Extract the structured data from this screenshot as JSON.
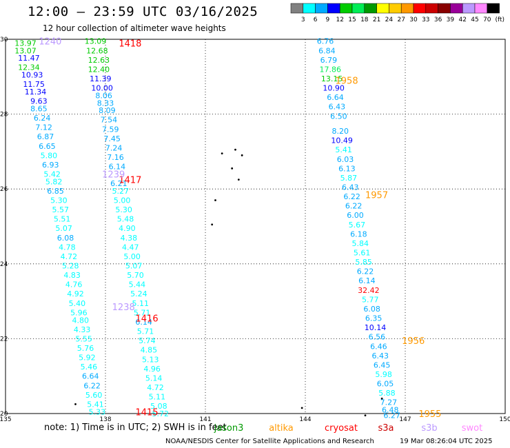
{
  "header": {
    "title": "12:00 – 23:59 UTC 03/16/2025",
    "subtitle": "12 hour collection of altimeter wave heights"
  },
  "colorbar": {
    "colors": [
      "#808080",
      "#00ffff",
      "#00aaff",
      "#0000ff",
      "#00cc00",
      "#00ee55",
      "#009900",
      "#ffff00",
      "#ffcc00",
      "#ff9900",
      "#ff0000",
      "#cc0000",
      "#880000",
      "#990099",
      "#bb99ff",
      "#ff88ff",
      "#000000"
    ],
    "labels": [
      "3",
      "6",
      "9",
      "12",
      "15",
      "18",
      "21",
      "24",
      "27",
      "30",
      "33",
      "36",
      "39",
      "42",
      "45",
      "70"
    ],
    "unit": "(ft)"
  },
  "chart_data": {
    "type": "scatter",
    "xlim": [
      135,
      150
    ],
    "ylim": [
      20,
      30
    ],
    "x_ticks": [
      "135",
      "138",
      "141",
      "144",
      "147",
      "150"
    ],
    "y_ticks": [
      "20",
      "22",
      "24",
      "26",
      "28",
      "30"
    ],
    "x_tick_values": [
      135,
      138,
      141,
      144,
      147,
      150
    ],
    "y_tick_values": [
      20,
      22,
      24,
      26,
      28,
      30
    ],
    "grid": true,
    "track_labels": [
      {
        "text": "1418",
        "lon": 138.4,
        "lat": 29.9,
        "color": "#ff0000"
      },
      {
        "text": "1240",
        "lon": 136.0,
        "lat": 29.95,
        "color": "#bb99ff"
      },
      {
        "text": "1417",
        "lon": 138.4,
        "lat": 26.25,
        "color": "#ff0000"
      },
      {
        "text": "1239",
        "lon": 137.9,
        "lat": 26.4,
        "color": "#bb99ff"
      },
      {
        "text": "1238",
        "lon": 138.2,
        "lat": 22.85,
        "color": "#bb99ff"
      },
      {
        "text": "1416",
        "lon": 138.9,
        "lat": 22.55,
        "color": "#ff0000"
      },
      {
        "text": "1415",
        "lon": 138.9,
        "lat": 20.05,
        "color": "#ff0000"
      },
      {
        "text": "1958",
        "lon": 144.9,
        "lat": 28.9,
        "color": "#ff9900"
      },
      {
        "text": "1957",
        "lon": 145.8,
        "lat": 25.85,
        "color": "#ff9900"
      },
      {
        "text": "1956",
        "lon": 146.9,
        "lat": 21.95,
        "color": "#ff9900"
      },
      {
        "text": "1955",
        "lon": 147.4,
        "lat": 20.0,
        "color": "#ff9900"
      }
    ],
    "series": [
      {
        "values": [
          [
            "13.97",
            135.6,
            29.9
          ],
          [
            "13.07",
            135.6,
            29.7
          ],
          [
            "11.47",
            135.7,
            29.5
          ],
          [
            "12.34",
            135.7,
            29.25
          ],
          [
            "10.93",
            135.8,
            29.05
          ],
          [
            "11.75",
            135.85,
            28.8
          ],
          [
            "11.34",
            135.9,
            28.6
          ],
          [
            "9.63",
            136.0,
            28.35
          ],
          [
            "8.65",
            136.0,
            28.15
          ],
          [
            "6.24",
            136.1,
            27.9
          ],
          [
            "7.12",
            136.15,
            27.65
          ],
          [
            "6.87",
            136.2,
            27.4
          ],
          [
            "6.65",
            136.25,
            27.15
          ],
          [
            "5.80",
            136.3,
            26.9
          ],
          [
            "6.93",
            136.35,
            26.65
          ],
          [
            "5.42",
            136.4,
            26.4
          ],
          [
            "5.82",
            136.45,
            26.2
          ],
          [
            "6.85",
            136.5,
            25.95
          ],
          [
            "5.30",
            136.6,
            25.7
          ],
          [
            "5.57",
            136.65,
            25.45
          ],
          [
            "5.51",
            136.7,
            25.2
          ],
          [
            "5.07",
            136.75,
            24.95
          ],
          [
            "6.08",
            136.8,
            24.7
          ],
          [
            "4.78",
            136.85,
            24.45
          ],
          [
            "4.72",
            136.9,
            24.2
          ],
          [
            "5.28",
            136.95,
            23.95
          ],
          [
            "4.83",
            137.0,
            23.7
          ],
          [
            "4.76",
            137.05,
            23.45
          ],
          [
            "4.92",
            137.1,
            23.2
          ],
          [
            "5.40",
            137.15,
            22.95
          ],
          [
            "5.96",
            137.2,
            22.7
          ],
          [
            "4.80",
            137.25,
            22.5
          ],
          [
            "4.33",
            137.3,
            22.25
          ],
          [
            "5.55",
            137.35,
            22.0
          ],
          [
            "5.76",
            137.4,
            21.75
          ],
          [
            "5.92",
            137.45,
            21.5
          ],
          [
            "5.46",
            137.5,
            21.25
          ],
          [
            "6.64",
            137.55,
            21.0
          ],
          [
            "6.22",
            137.6,
            20.75
          ],
          [
            "5.60",
            137.65,
            20.5
          ],
          [
            "5.41",
            137.7,
            20.25
          ],
          [
            "5.33",
            137.75,
            20.05
          ]
        ]
      },
      {
        "values": [
          [
            "13.09",
            137.7,
            29.95
          ],
          [
            "12.68",
            137.75,
            29.7
          ],
          [
            "12.63",
            137.8,
            29.45
          ],
          [
            "12.40",
            137.8,
            29.2
          ],
          [
            "11.39",
            137.85,
            28.95
          ],
          [
            "10.00",
            137.9,
            28.7
          ],
          [
            "8.06",
            137.95,
            28.5
          ],
          [
            "8.33",
            138.0,
            28.3
          ],
          [
            "8.09",
            138.05,
            28.1
          ],
          [
            "7.54",
            138.1,
            27.85
          ],
          [
            "7.59",
            138.15,
            27.6
          ],
          [
            "7.45",
            138.2,
            27.35
          ],
          [
            "7.24",
            138.25,
            27.1
          ],
          [
            "7.16",
            138.3,
            26.85
          ],
          [
            "6.14",
            138.35,
            26.6
          ],
          [
            "6.21",
            138.4,
            26.15
          ],
          [
            "5.27",
            138.45,
            25.95
          ],
          [
            "5.00",
            138.5,
            25.7
          ],
          [
            "5.30",
            138.55,
            25.45
          ],
          [
            "5.48",
            138.6,
            25.2
          ],
          [
            "4.90",
            138.65,
            24.95
          ],
          [
            "4.38",
            138.7,
            24.7
          ],
          [
            "4.47",
            138.75,
            24.45
          ],
          [
            "5.00",
            138.8,
            24.2
          ],
          [
            "5.07",
            138.85,
            23.95
          ],
          [
            "5.70",
            138.9,
            23.7
          ],
          [
            "5.44",
            138.95,
            23.45
          ],
          [
            "5.24",
            139.0,
            23.2
          ],
          [
            "5.11",
            139.05,
            22.95
          ],
          [
            "5.71",
            139.1,
            22.7
          ],
          [
            "6.14",
            139.15,
            22.45
          ],
          [
            "5.71",
            139.2,
            22.2
          ],
          [
            "5.74",
            139.25,
            21.95
          ],
          [
            "4.85",
            139.3,
            21.7
          ],
          [
            "5.13",
            139.35,
            21.45
          ],
          [
            "4.96",
            139.4,
            21.2
          ],
          [
            "5.14",
            139.45,
            20.95
          ],
          [
            "4.72",
            139.5,
            20.7
          ],
          [
            "5.11",
            139.55,
            20.45
          ],
          [
            "5.08",
            139.6,
            20.2
          ],
          [
            "5.72",
            139.65,
            20.0
          ]
        ]
      },
      {
        "values": [
          [
            "6.76",
            144.6,
            29.95
          ],
          [
            "6.84",
            144.65,
            29.7
          ],
          [
            "6.79",
            144.7,
            29.45
          ],
          [
            "17.86",
            144.75,
            29.2
          ],
          [
            "13.15",
            144.8,
            28.95
          ],
          [
            "10.90",
            144.85,
            28.7
          ],
          [
            "6.64",
            144.9,
            28.45
          ],
          [
            "6.43",
            144.95,
            28.2
          ],
          [
            "6.50",
            145.0,
            27.95
          ],
          [
            "8.20",
            145.05,
            27.55
          ],
          [
            "10.49",
            145.1,
            27.3
          ],
          [
            "5.41",
            145.15,
            27.05
          ],
          [
            "6.03",
            145.2,
            26.8
          ],
          [
            "6.13",
            145.25,
            26.55
          ],
          [
            "5.87",
            145.3,
            26.3
          ],
          [
            "6.43",
            145.35,
            26.05
          ],
          [
            "6.22",
            145.4,
            25.8
          ],
          [
            "6.22",
            145.45,
            25.55
          ],
          [
            "6.00",
            145.5,
            25.3
          ],
          [
            "5.67",
            145.55,
            25.05
          ],
          [
            "6.18",
            145.6,
            24.8
          ],
          [
            "5.84",
            145.65,
            24.55
          ],
          [
            "5.61",
            145.7,
            24.3
          ],
          [
            "5.85",
            145.75,
            24.05
          ],
          [
            "6.22",
            145.8,
            23.8
          ],
          [
            "6.14",
            145.85,
            23.55
          ],
          [
            "32.42",
            145.9,
            23.3
          ],
          [
            "5.77",
            145.95,
            23.05
          ],
          [
            "6.08",
            146.0,
            22.8
          ],
          [
            "6.35",
            146.05,
            22.55
          ],
          [
            "10.14",
            146.1,
            22.3
          ],
          [
            "6.56",
            146.15,
            22.05
          ],
          [
            "6.46",
            146.2,
            21.8
          ],
          [
            "6.43",
            146.25,
            21.55
          ],
          [
            "6.45",
            146.3,
            21.3
          ],
          [
            "5.98",
            146.35,
            21.05
          ],
          [
            "6.05",
            146.4,
            20.8
          ],
          [
            "5.88",
            146.45,
            20.55
          ],
          [
            "7.27",
            146.5,
            20.3
          ],
          [
            "6.48",
            146.55,
            20.1
          ],
          [
            "6.27",
            146.6,
            19.95
          ]
        ]
      }
    ],
    "land_dots": [
      [
        141.5,
        26.95
      ],
      [
        141.9,
        27.05
      ],
      [
        142.1,
        26.9
      ],
      [
        141.8,
        26.55
      ],
      [
        142.0,
        26.25
      ],
      [
        141.3,
        25.7
      ],
      [
        141.2,
        25.05
      ],
      [
        143.9,
        20.15
      ],
      [
        146.3,
        20.4
      ],
      [
        145.8,
        19.95
      ],
      [
        137.1,
        20.25
      ]
    ]
  },
  "legend": {
    "note": "note: 1) Time is in UTC; 2) SWH is in feet",
    "sats": [
      {
        "name": "jason3",
        "color": "#009900"
      },
      {
        "name": "altika",
        "color": "#ff9900"
      },
      {
        "name": "cryosat",
        "color": "#ff0000"
      },
      {
        "name": "s3a",
        "color": "#cc0000"
      },
      {
        "name": "s3b",
        "color": "#bb99ff"
      },
      {
        "name": "swot",
        "color": "#ff88ff"
      }
    ]
  },
  "footer": {
    "credit": "NOAA/NESDIS Center for Satellite Applications and Research",
    "timestamp": "19 Mar 08:26:04 UTC 2025"
  }
}
